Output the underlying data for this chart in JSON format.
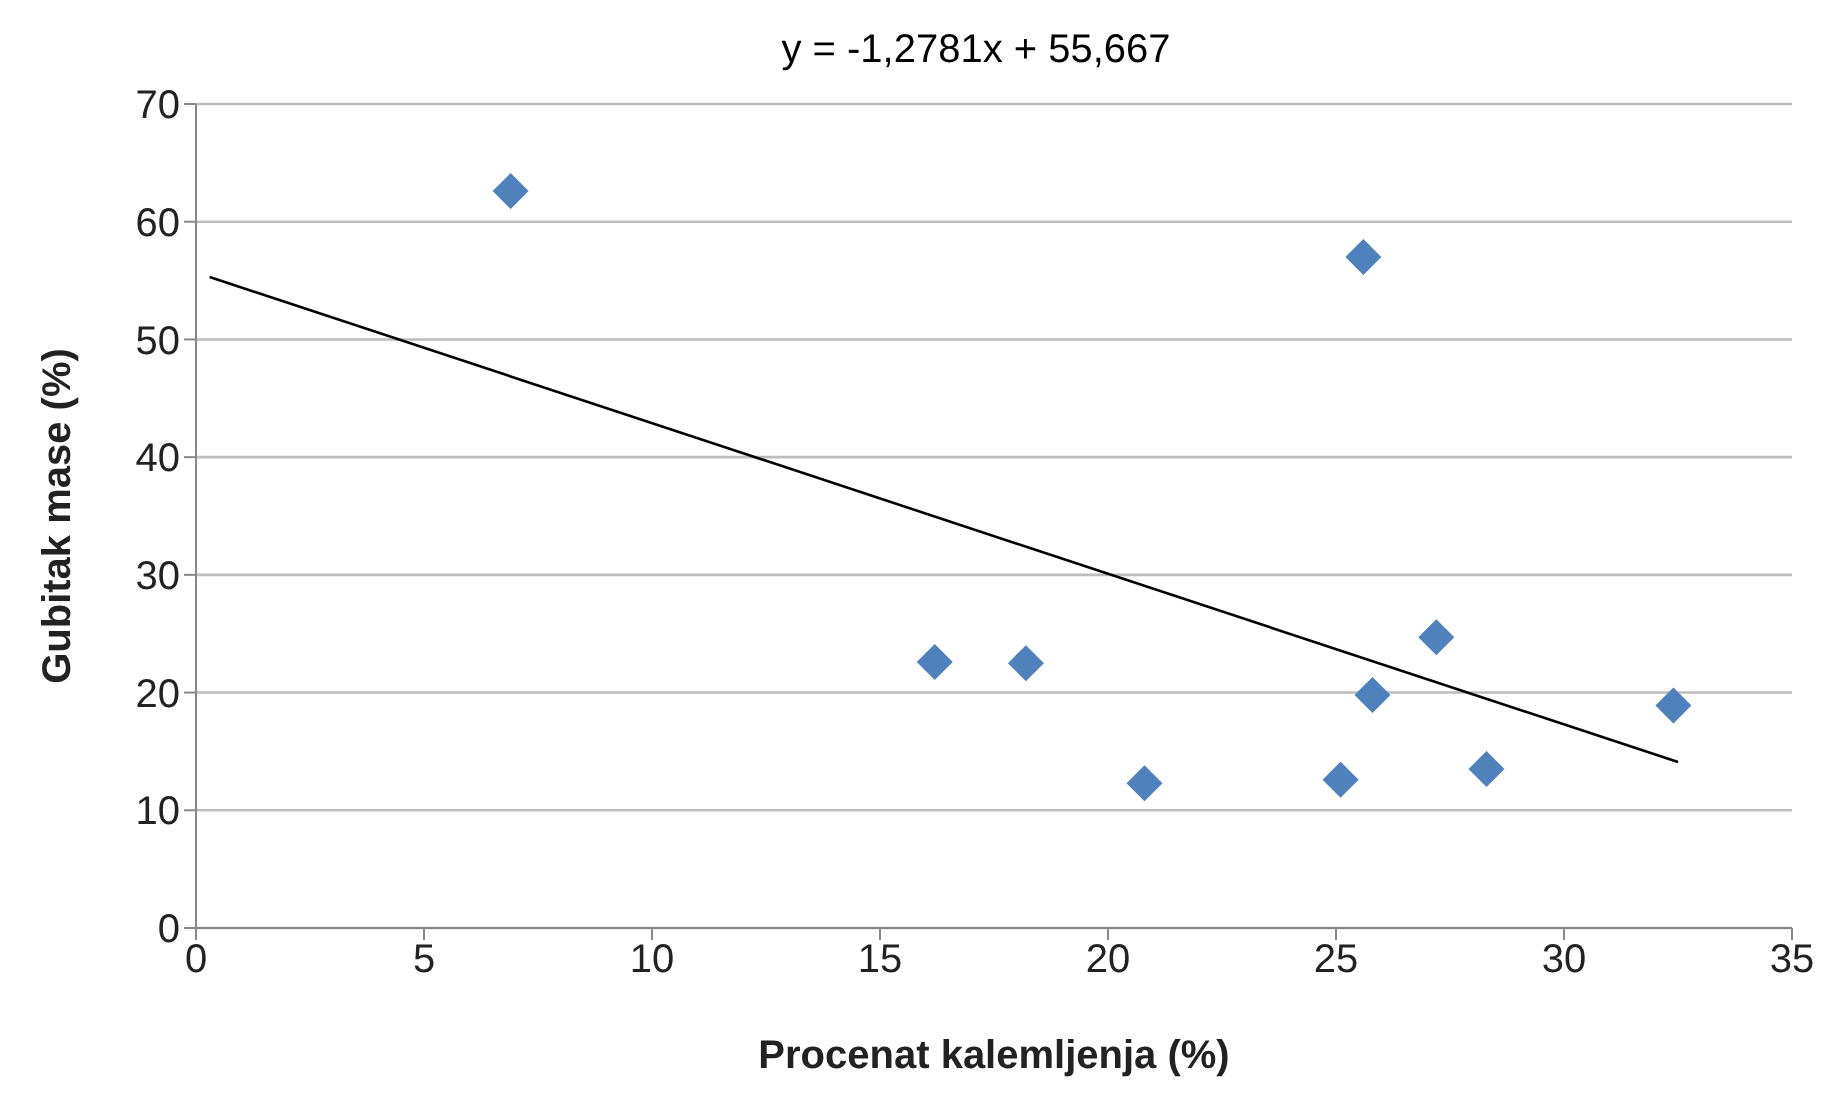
{
  "chart_data": {
    "type": "scatter",
    "title": "y = -1,2781x + 55,667",
    "xlabel": "Procenat kalemljenja (%)",
    "ylabel": "Gubitak mase (%)",
    "xlim": [
      0,
      35
    ],
    "xticks": [
      0,
      5,
      10,
      15,
      20,
      25,
      30,
      35
    ],
    "ylim": [
      0,
      70
    ],
    "yticks": [
      0,
      10,
      20,
      30,
      40,
      50,
      60,
      70
    ],
    "grid": "y",
    "series": [
      {
        "type": "scatter",
        "marker": "diamond",
        "color": "#4f81bd",
        "x": [
          6.9,
          16.2,
          18.2,
          20.8,
          25.1,
          25.6,
          25.8,
          27.2,
          28.3,
          32.4
        ],
        "values": [
          62.6,
          22.6,
          22.5,
          12.3,
          12.6,
          57.0,
          19.8,
          24.7,
          13.5,
          18.9
        ]
      },
      {
        "type": "line",
        "marker": "none",
        "line_style": "solid",
        "color": "#000000",
        "x": [
          0.3,
          32.5
        ],
        "values": [
          55.3,
          14.1
        ]
      }
    ]
  }
}
